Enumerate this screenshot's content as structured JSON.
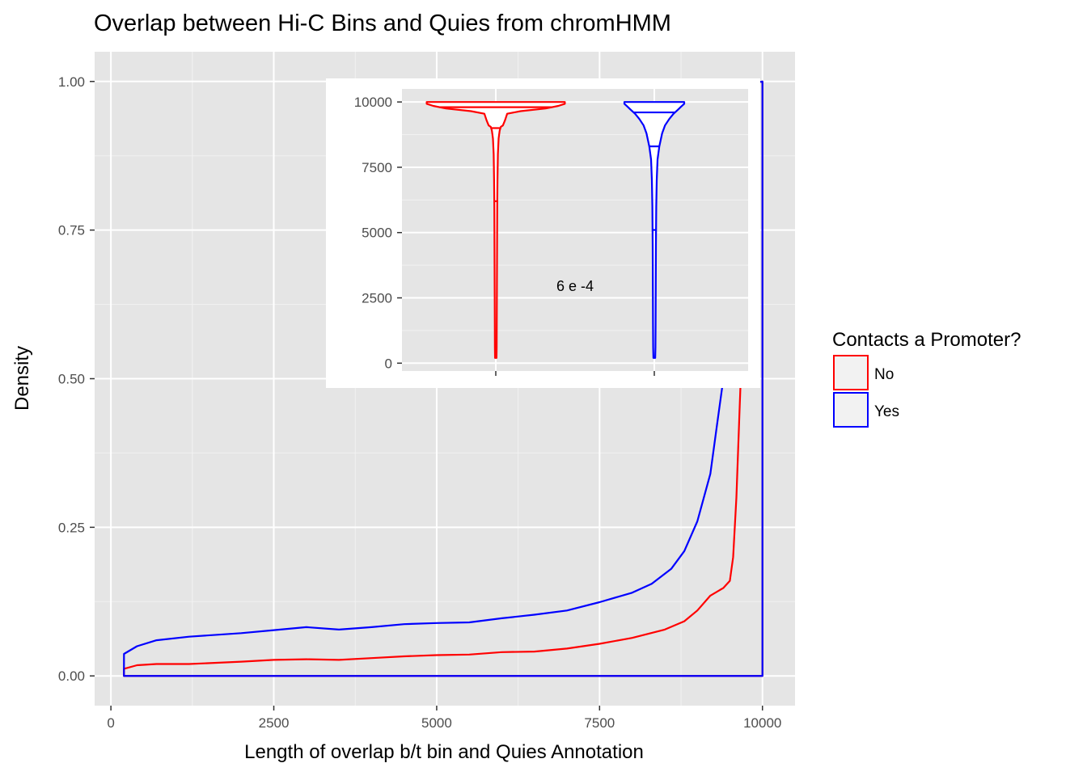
{
  "chart_data": {
    "type": "density",
    "title": "Overlap between Hi-C Bins and Quies from chromHMM",
    "xlabel": "Length of overlap b/t bin and Quies Annotation",
    "ylabel": "Density",
    "xlim": [
      -250,
      10500
    ],
    "ylim": [
      -0.05,
      1.05
    ],
    "x_ticks": [
      0,
      2500,
      5000,
      7500,
      10000
    ],
    "x_tick_labels": [
      "0",
      "2500",
      "5000",
      "7500",
      "10000"
    ],
    "y_ticks": [
      0,
      0.25,
      0.5,
      0.75,
      1.0
    ],
    "y_tick_labels": [
      "0.00",
      "0.25",
      "0.50",
      "0.75",
      "1.00"
    ],
    "grid": true,
    "legend": {
      "title": "Contacts a Promoter?",
      "position": "right",
      "entries": [
        {
          "label": "No",
          "color": "#ff0000"
        },
        {
          "label": "Yes",
          "color": "#0000ff"
        }
      ]
    },
    "series": [
      {
        "name": "No",
        "color": "#ff0000",
        "points": [
          [
            200,
            0.012
          ],
          [
            400,
            0.018
          ],
          [
            700,
            0.02
          ],
          [
            1200,
            0.02
          ],
          [
            2000,
            0.024
          ],
          [
            2500,
            0.027
          ],
          [
            3000,
            0.028
          ],
          [
            3500,
            0.027
          ],
          [
            4000,
            0.03
          ],
          [
            4500,
            0.033
          ],
          [
            5000,
            0.035
          ],
          [
            5500,
            0.036
          ],
          [
            6000,
            0.04
          ],
          [
            6500,
            0.041
          ],
          [
            7000,
            0.046
          ],
          [
            7500,
            0.054
          ],
          [
            8000,
            0.064
          ],
          [
            8500,
            0.078
          ],
          [
            8800,
            0.092
          ],
          [
            9000,
            0.11
          ],
          [
            9200,
            0.135
          ],
          [
            9400,
            0.148
          ],
          [
            9500,
            0.16
          ],
          [
            9550,
            0.2
          ],
          [
            9600,
            0.3
          ],
          [
            9650,
            0.45
          ],
          [
            9700,
            0.6
          ],
          [
            9750,
            0.78
          ],
          [
            9800,
            0.92
          ],
          [
            9850,
            0.99
          ],
          [
            9900,
            0.998
          ],
          [
            10000,
            1.0
          ]
        ]
      },
      {
        "name": "Yes",
        "color": "#0000ff",
        "points": [
          [
            200,
            0.037
          ],
          [
            400,
            0.05
          ],
          [
            700,
            0.06
          ],
          [
            1200,
            0.066
          ],
          [
            2000,
            0.072
          ],
          [
            2500,
            0.077
          ],
          [
            3000,
            0.082
          ],
          [
            3500,
            0.078
          ],
          [
            4000,
            0.082
          ],
          [
            4500,
            0.087
          ],
          [
            5000,
            0.089
          ],
          [
            5500,
            0.09
          ],
          [
            6000,
            0.097
          ],
          [
            6500,
            0.103
          ],
          [
            7000,
            0.11
          ],
          [
            7500,
            0.124
          ],
          [
            8000,
            0.14
          ],
          [
            8300,
            0.155
          ],
          [
            8600,
            0.18
          ],
          [
            8800,
            0.21
          ],
          [
            9000,
            0.26
          ],
          [
            9200,
            0.34
          ],
          [
            9300,
            0.42
          ],
          [
            9400,
            0.5
          ],
          [
            9500,
            0.63
          ],
          [
            9600,
            0.76
          ],
          [
            9700,
            0.88
          ],
          [
            9800,
            0.97
          ],
          [
            9900,
            0.998
          ],
          [
            10000,
            1.0
          ]
        ]
      }
    ],
    "inset": {
      "type": "violin",
      "y_ticks": [
        0,
        2500,
        5000,
        7500,
        10000
      ],
      "y_tick_labels": [
        "0",
        "2500",
        "5000",
        "7500",
        "10000"
      ],
      "ylim": [
        -300,
        10500
      ],
      "annotation": "6 e -4",
      "violins": [
        {
          "name": "No",
          "color": "#ff0000",
          "median": 6200,
          "q3": 9000,
          "upper": 9800,
          "profile": [
            [
              200,
              0.01
            ],
            [
              600,
              0.012
            ],
            [
              1500,
              0.014
            ],
            [
              3000,
              0.016
            ],
            [
              4500,
              0.018
            ],
            [
              6000,
              0.02
            ],
            [
              7000,
              0.024
            ],
            [
              8000,
              0.03
            ],
            [
              8600,
              0.04
            ],
            [
              8900,
              0.055
            ],
            [
              9050,
              0.07
            ],
            [
              9100,
              0.1
            ],
            [
              9300,
              0.13
            ],
            [
              9550,
              0.16
            ],
            [
              9650,
              0.35
            ],
            [
              9750,
              0.7
            ],
            [
              9850,
              0.88
            ],
            [
              9930,
              0.97
            ],
            [
              10000,
              0.97
            ]
          ]
        },
        {
          "name": "Yes",
          "color": "#0000ff",
          "median": 5100,
          "q3": 8300,
          "upper": 9600,
          "profile": [
            [
              200,
              0.013
            ],
            [
              600,
              0.016
            ],
            [
              1500,
              0.018
            ],
            [
              3000,
              0.02
            ],
            [
              4500,
              0.023
            ],
            [
              6000,
              0.027
            ],
            [
              7000,
              0.034
            ],
            [
              7800,
              0.045
            ],
            [
              8300,
              0.07
            ],
            [
              8800,
              0.11
            ],
            [
              9100,
              0.15
            ],
            [
              9350,
              0.21
            ],
            [
              9550,
              0.27
            ],
            [
              9700,
              0.33
            ],
            [
              9830,
              0.38
            ],
            [
              9930,
              0.42
            ],
            [
              10000,
              0.42
            ]
          ]
        }
      ]
    }
  }
}
